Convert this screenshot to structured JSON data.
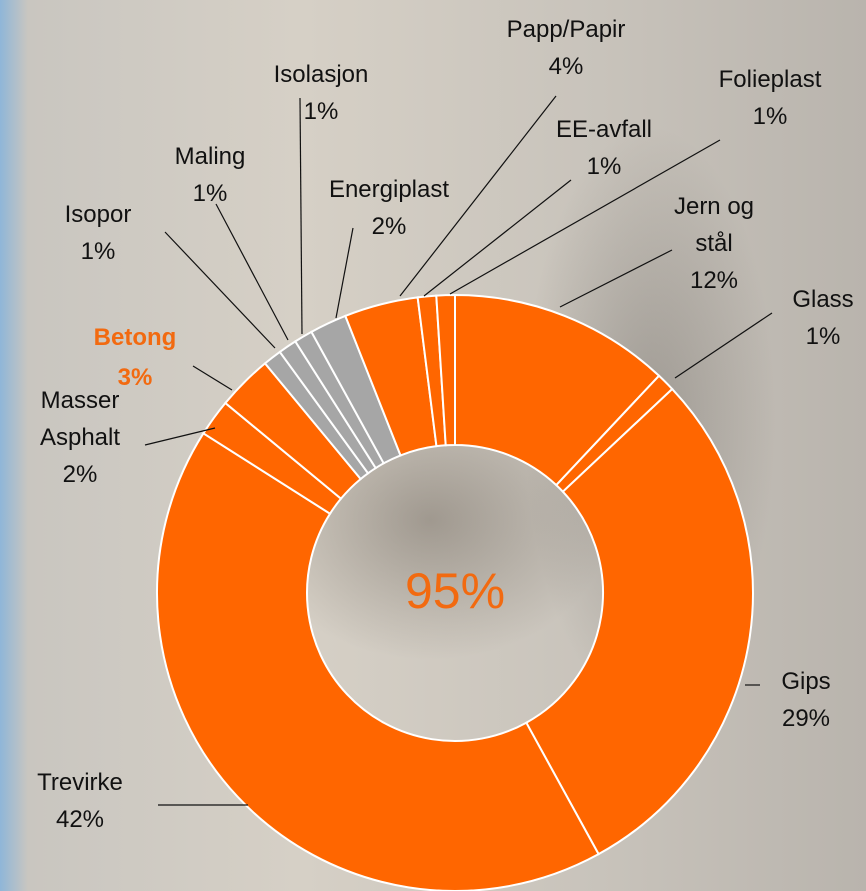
{
  "chart_data": {
    "type": "donut",
    "center_label": "95%",
    "categories": [
      "Jern og stål",
      "Glass",
      "Gips",
      "Trevirke",
      "Masser Asphalt",
      "Betong",
      "Isopor",
      "Maling",
      "Isolasjon",
      "Energiplast",
      "Papp/Papir",
      "EE-avfall",
      "Folieplast"
    ],
    "values": [
      12,
      1,
      29,
      42,
      2,
      3,
      1,
      1,
      1,
      2,
      4,
      1,
      1
    ],
    "value_labels": [
      "12%",
      "1%",
      "29%",
      "42%",
      "2%",
      "3%",
      "1%",
      "1%",
      "1%",
      "2%",
      "4%",
      "1%",
      "1%"
    ],
    "colors": [
      "#ff6600",
      "#ff6600",
      "#ff6600",
      "#ff6600",
      "#ff6600",
      "#ff6600",
      "#a6a6a6",
      "#a6a6a6",
      "#a6a6a6",
      "#a6a6a6",
      "#ff6600",
      "#ff6600",
      "#ff6600"
    ]
  }
}
